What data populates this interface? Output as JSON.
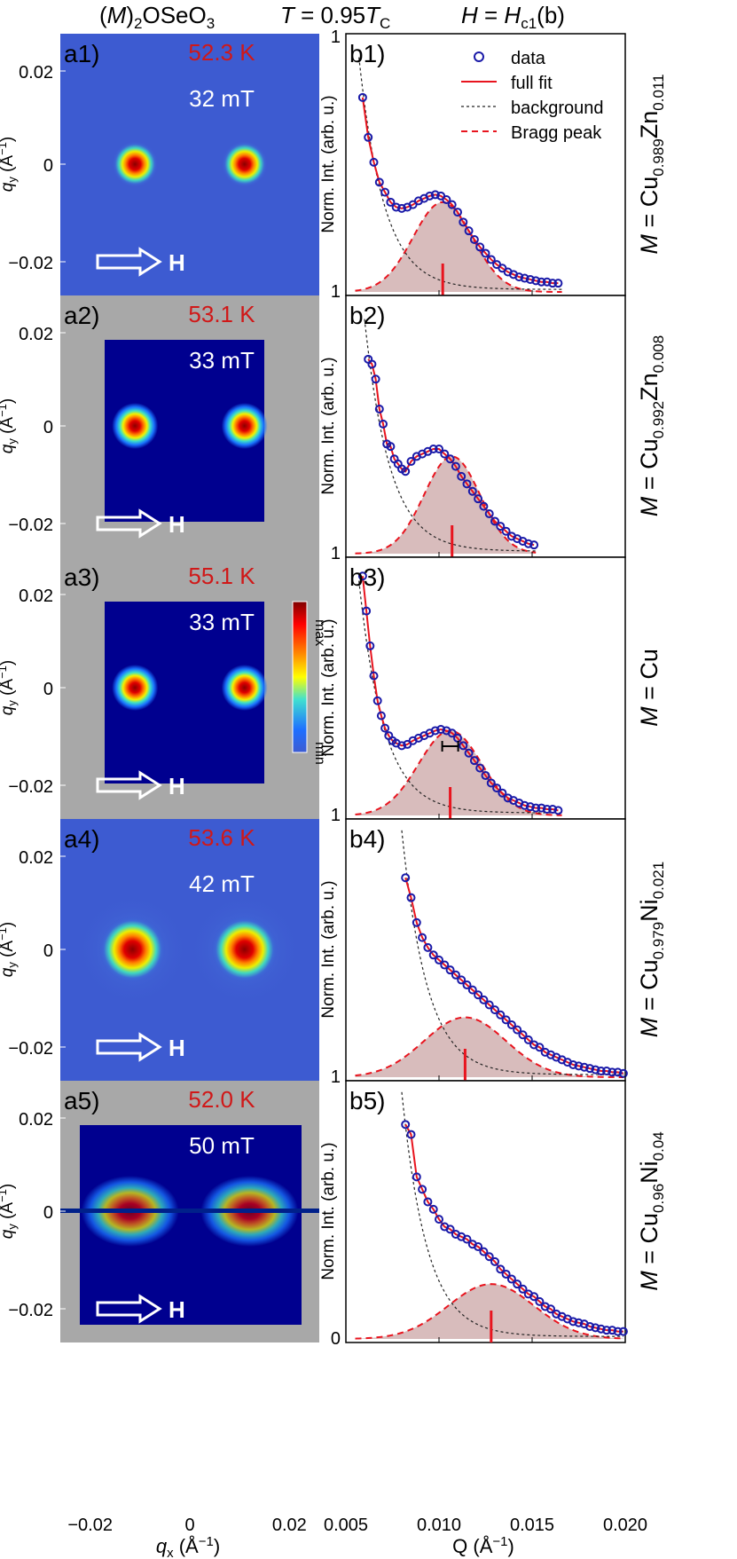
{
  "header": {
    "material_M": "M",
    "material_rest": "OSeO",
    "temp_T": "T",
    "temp_eq": " = 0.95",
    "temp_Tsub_main": "T",
    "temp_Tsub": "C",
    "field_H": "H",
    "field_eq": " = ",
    "field_Hsub_main": "H",
    "field_Hsub": "c1",
    "field_tail": "(b)"
  },
  "left_panels": {
    "ylabel": "q",
    "ylabel_sub": "y",
    "ylabel_unit": " (Å",
    "ylabel_sup": "−1",
    "ylabel_close": ")",
    "xlabel": "q",
    "xlabel_sub": "x",
    "xlabel_unit": " (Å",
    "xlabel_sup": "−1",
    "xlabel_close": ")",
    "yticks": [
      "0.02",
      "0",
      "−0.02"
    ],
    "xticks": [
      "−0.02",
      "0",
      "0.02"
    ],
    "arrow_label": "H",
    "colorbar": {
      "max": "max",
      "min": "min"
    },
    "colors": {
      "masked": "#a8a8a8",
      "background": "#00008f",
      "deep_bg": "#3d5bd1"
    },
    "panels": [
      {
        "label": "a1)",
        "temperature": "52.3 K",
        "field": "32 mT",
        "style": "smooth"
      },
      {
        "label": "a2)",
        "temperature": "53.1 K",
        "field": "33 mT",
        "style": "masked"
      },
      {
        "label": "a3)",
        "temperature": "55.1 K",
        "field": "33 mT",
        "style": "masked"
      },
      {
        "label": "a4)",
        "temperature": "53.6 K",
        "field": "42 mT",
        "style": "smooth"
      },
      {
        "label": "a5)",
        "temperature": "52.0 K",
        "field": "50 mT",
        "style": "masked"
      }
    ]
  },
  "chart_data": {
    "type": "scatter",
    "xlabel": "Q (Å",
    "xlabel_sup": "−1",
    "xlabel_close": ")",
    "ylabel": "Norm. Int. (arb. u.)",
    "xlim": [
      0.005,
      0.02
    ],
    "xticks": [
      "0.005",
      "0.010",
      "0.015",
      "0.020"
    ],
    "legend": {
      "placement": "top-right",
      "entries": [
        "data",
        "full fit",
        "background",
        "Bragg peak"
      ]
    },
    "colors": {
      "data": "#1a1aa8",
      "fit": "#e8141e",
      "background": "#222222",
      "bragg": "#e8141e",
      "fill": "#d8bcbc"
    },
    "panels": [
      {
        "label": "b1)",
        "sample": "M = Cu",
        "sample_M": "M",
        "sample_eq": " = Cu",
        "sub1": "0.989",
        "el2": "Zn",
        "sub2": "0.011",
        "top_tick": "1",
        "bottom_tick": "1",
        "peak_q": 0.0102,
        "bar": false,
        "points": [
          [
            0.0059,
            0.78
          ],
          [
            0.0062,
            0.62
          ],
          [
            0.0065,
            0.52
          ],
          [
            0.0068,
            0.44
          ],
          [
            0.0071,
            0.4
          ],
          [
            0.0074,
            0.36
          ],
          [
            0.0077,
            0.34
          ],
          [
            0.008,
            0.335
          ],
          [
            0.0083,
            0.34
          ],
          [
            0.0086,
            0.35
          ],
          [
            0.0089,
            0.365
          ],
          [
            0.0092,
            0.375
          ],
          [
            0.0095,
            0.385
          ],
          [
            0.0098,
            0.39
          ],
          [
            0.0101,
            0.385
          ],
          [
            0.0104,
            0.37
          ],
          [
            0.0107,
            0.35
          ],
          [
            0.011,
            0.32
          ],
          [
            0.0113,
            0.28
          ],
          [
            0.0116,
            0.245
          ],
          [
            0.0119,
            0.21
          ],
          [
            0.0122,
            0.18
          ],
          [
            0.0125,
            0.155
          ],
          [
            0.0128,
            0.13
          ],
          [
            0.0131,
            0.11
          ],
          [
            0.0134,
            0.095
          ],
          [
            0.0137,
            0.08
          ],
          [
            0.014,
            0.07
          ],
          [
            0.0143,
            0.06
          ],
          [
            0.0146,
            0.055
          ],
          [
            0.0149,
            0.05
          ],
          [
            0.0152,
            0.045
          ],
          [
            0.0155,
            0.04
          ],
          [
            0.0158,
            0.04
          ],
          [
            0.0161,
            0.035
          ],
          [
            0.0164,
            0.035
          ]
        ]
      },
      {
        "label": "b2)",
        "sample": "M = Cu",
        "sample_M": "M",
        "sample_eq": " = Cu",
        "sub1": "0.992",
        "el2": "Zn",
        "sub2": "0.008",
        "top_tick": "",
        "bottom_tick": "1",
        "peak_q": 0.0107,
        "bar": false,
        "points": [
          [
            0.0062,
            0.78
          ],
          [
            0.0064,
            0.76
          ],
          [
            0.0066,
            0.7
          ],
          [
            0.0068,
            0.58
          ],
          [
            0.007,
            0.52
          ],
          [
            0.0072,
            0.44
          ],
          [
            0.0074,
            0.43
          ],
          [
            0.0076,
            0.38
          ],
          [
            0.0078,
            0.36
          ],
          [
            0.008,
            0.34
          ],
          [
            0.0082,
            0.33
          ],
          [
            0.0085,
            0.37
          ],
          [
            0.0088,
            0.39
          ],
          [
            0.0091,
            0.4
          ],
          [
            0.0094,
            0.41
          ],
          [
            0.0097,
            0.42
          ],
          [
            0.01,
            0.42
          ],
          [
            0.0103,
            0.4
          ],
          [
            0.0106,
            0.38
          ],
          [
            0.0109,
            0.35
          ],
          [
            0.0112,
            0.31
          ],
          [
            0.0115,
            0.28
          ],
          [
            0.0118,
            0.25
          ],
          [
            0.0121,
            0.22
          ],
          [
            0.0124,
            0.19
          ],
          [
            0.0127,
            0.16
          ],
          [
            0.013,
            0.13
          ],
          [
            0.0133,
            0.11
          ],
          [
            0.0136,
            0.09
          ],
          [
            0.0139,
            0.07
          ],
          [
            0.0142,
            0.06
          ],
          [
            0.0145,
            0.05
          ],
          [
            0.0148,
            0.04
          ],
          [
            0.0151,
            0.035
          ]
        ]
      },
      {
        "label": "b3)",
        "sample": "M = Cu",
        "sample_M": "M",
        "sample_eq": " = Cu",
        "sub1": "",
        "el2": "",
        "sub2": "",
        "top_tick": "",
        "bottom_tick": "1",
        "peak_q": 0.0106,
        "bar": true,
        "points": [
          [
            0.0059,
            0.96
          ],
          [
            0.0061,
            0.82
          ],
          [
            0.0063,
            0.68
          ],
          [
            0.0065,
            0.56
          ],
          [
            0.0067,
            0.46
          ],
          [
            0.0069,
            0.4
          ],
          [
            0.0071,
            0.35
          ],
          [
            0.0073,
            0.32
          ],
          [
            0.0075,
            0.3
          ],
          [
            0.0077,
            0.29
          ],
          [
            0.008,
            0.28
          ],
          [
            0.0083,
            0.285
          ],
          [
            0.0086,
            0.3
          ],
          [
            0.0089,
            0.31
          ],
          [
            0.0092,
            0.32
          ],
          [
            0.0095,
            0.33
          ],
          [
            0.0098,
            0.34
          ],
          [
            0.0101,
            0.345
          ],
          [
            0.0104,
            0.34
          ],
          [
            0.0107,
            0.33
          ],
          [
            0.011,
            0.31
          ],
          [
            0.0113,
            0.28
          ],
          [
            0.0116,
            0.25
          ],
          [
            0.0119,
            0.22
          ],
          [
            0.0122,
            0.19
          ],
          [
            0.0125,
            0.16
          ],
          [
            0.0128,
            0.13
          ],
          [
            0.0131,
            0.11
          ],
          [
            0.0134,
            0.09
          ],
          [
            0.0137,
            0.07
          ],
          [
            0.014,
            0.06
          ],
          [
            0.0143,
            0.05
          ],
          [
            0.0146,
            0.04
          ],
          [
            0.0149,
            0.035
          ],
          [
            0.0152,
            0.03
          ],
          [
            0.0155,
            0.03
          ],
          [
            0.0158,
            0.025
          ],
          [
            0.0161,
            0.025
          ],
          [
            0.0164,
            0.02
          ]
        ]
      },
      {
        "label": "b4)",
        "sample": "M = Cu",
        "sample_M": "M",
        "sample_eq": " = Cu",
        "sub1": "0.979",
        "el2": "Ni",
        "sub2": "0.021",
        "top_tick": "",
        "bottom_tick": "1",
        "peak_q": 0.0114,
        "bar": false,
        "points": [
          [
            0.0082,
            0.8
          ],
          [
            0.0085,
            0.72
          ],
          [
            0.0088,
            0.62
          ],
          [
            0.0091,
            0.56
          ],
          [
            0.0094,
            0.52
          ],
          [
            0.0097,
            0.49
          ],
          [
            0.01,
            0.47
          ],
          [
            0.0103,
            0.45
          ],
          [
            0.0106,
            0.43
          ],
          [
            0.0109,
            0.41
          ],
          [
            0.0112,
            0.39
          ],
          [
            0.0115,
            0.37
          ],
          [
            0.0118,
            0.35
          ],
          [
            0.0121,
            0.33
          ],
          [
            0.0124,
            0.31
          ],
          [
            0.0127,
            0.29
          ],
          [
            0.013,
            0.27
          ],
          [
            0.0133,
            0.25
          ],
          [
            0.0136,
            0.23
          ],
          [
            0.0139,
            0.21
          ],
          [
            0.0142,
            0.19
          ],
          [
            0.0145,
            0.17
          ],
          [
            0.0148,
            0.15
          ],
          [
            0.0151,
            0.13
          ],
          [
            0.0154,
            0.12
          ],
          [
            0.0157,
            0.1
          ],
          [
            0.016,
            0.09
          ],
          [
            0.0163,
            0.08
          ],
          [
            0.0166,
            0.07
          ],
          [
            0.0169,
            0.06
          ],
          [
            0.0172,
            0.05
          ],
          [
            0.0175,
            0.045
          ],
          [
            0.0178,
            0.04
          ],
          [
            0.0181,
            0.035
          ],
          [
            0.0184,
            0.03
          ],
          [
            0.0187,
            0.025
          ],
          [
            0.019,
            0.025
          ],
          [
            0.0193,
            0.02
          ],
          [
            0.0196,
            0.02
          ],
          [
            0.0199,
            0.015
          ]
        ]
      },
      {
        "label": "b5)",
        "sample": "M = Cu",
        "sample_M": "M",
        "sample_eq": " = Cu",
        "sub1": "0.96",
        "el2": "Ni",
        "sub2": "0.04",
        "top_tick": "",
        "bottom_tick": "0",
        "peak_q": 0.0128,
        "bar": false,
        "points": [
          [
            0.0082,
            0.86
          ],
          [
            0.0085,
            0.82
          ],
          [
            0.0088,
            0.65
          ],
          [
            0.0091,
            0.6
          ],
          [
            0.0094,
            0.55
          ],
          [
            0.0097,
            0.52
          ],
          [
            0.01,
            0.48
          ],
          [
            0.0103,
            0.45
          ],
          [
            0.0106,
            0.44
          ],
          [
            0.0109,
            0.42
          ],
          [
            0.0112,
            0.41
          ],
          [
            0.0115,
            0.4
          ],
          [
            0.0118,
            0.38
          ],
          [
            0.0121,
            0.37
          ],
          [
            0.0124,
            0.35
          ],
          [
            0.0127,
            0.33
          ],
          [
            0.013,
            0.31
          ],
          [
            0.0133,
            0.28
          ],
          [
            0.0136,
            0.26
          ],
          [
            0.0139,
            0.24
          ],
          [
            0.0142,
            0.22
          ],
          [
            0.0145,
            0.2
          ],
          [
            0.0148,
            0.18
          ],
          [
            0.0151,
            0.17
          ],
          [
            0.0154,
            0.15
          ],
          [
            0.0157,
            0.13
          ],
          [
            0.016,
            0.12
          ],
          [
            0.0163,
            0.1
          ],
          [
            0.0166,
            0.09
          ],
          [
            0.0169,
            0.08
          ],
          [
            0.0172,
            0.07
          ],
          [
            0.0175,
            0.065
          ],
          [
            0.0178,
            0.06
          ],
          [
            0.0181,
            0.05
          ],
          [
            0.0184,
            0.045
          ],
          [
            0.0187,
            0.04
          ],
          [
            0.019,
            0.035
          ],
          [
            0.0193,
            0.035
          ],
          [
            0.0196,
            0.03
          ],
          [
            0.0199,
            0.03
          ]
        ]
      }
    ]
  }
}
